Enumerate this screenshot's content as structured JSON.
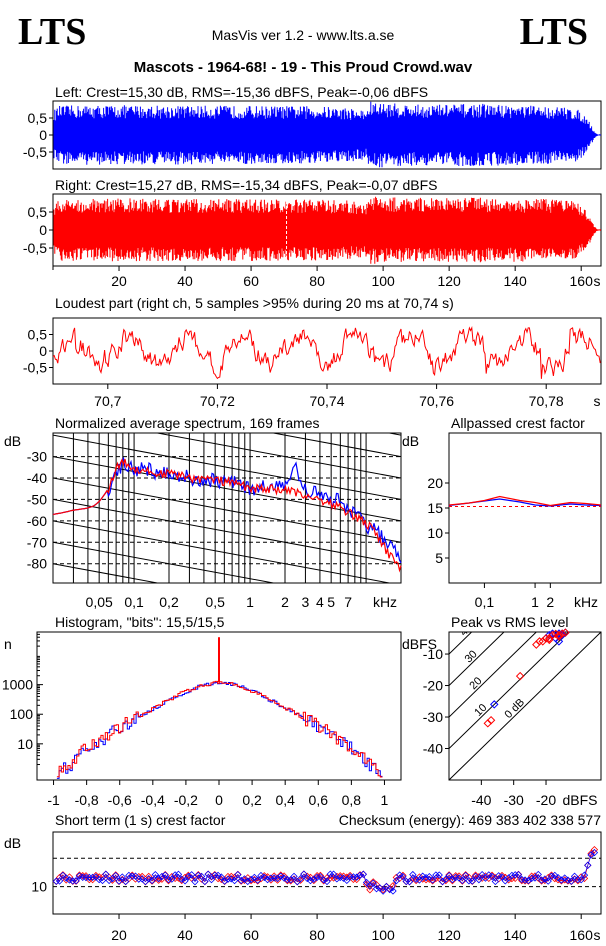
{
  "header": {
    "logo_left": "LTS",
    "logo_right": "LTS",
    "app_title": "MasVis ver 1.2 - www.lts.a.se",
    "file_title": "Mascots - 1964-68! - 19 - This Proud Crowd.wav"
  },
  "colors": {
    "left": "#0000ff",
    "right": "#ff0000"
  },
  "chart_data": [
    {
      "id": "left",
      "type": "area",
      "title": "Left: Crest=15,30 dB, RMS=-15,36 dBFS, Peak=-0,06 dBFS",
      "ylim": [
        -1,
        1
      ],
      "yticks": [
        "0,5",
        "0",
        "-0,5"
      ],
      "ytick_values": [
        0.5,
        0,
        -0.5
      ],
      "xlim": [
        0,
        166
      ],
      "envelope_x": [
        0,
        2,
        10,
        20,
        40,
        60,
        80,
        90,
        95,
        96,
        97,
        100,
        110,
        130,
        150,
        158,
        161,
        163,
        164,
        165
      ],
      "envelope_y": [
        0.72,
        0.86,
        0.88,
        0.88,
        0.87,
        0.86,
        0.85,
        0.8,
        0.72,
        1.0,
        0.97,
        0.95,
        0.9,
        0.92,
        0.85,
        0.8,
        0.62,
        0.3,
        0.1,
        0.02
      ]
    },
    {
      "id": "right",
      "type": "area",
      "title": "Right: Crest=15,27 dB, RMS=-15,34 dBFS, Peak=-0,07 dBFS",
      "ylim": [
        -1,
        1
      ],
      "yticks": [
        "0,5",
        "0",
        "-0,5"
      ],
      "ytick_values": [
        0.5,
        0,
        -0.5
      ],
      "xlim": [
        0,
        166
      ],
      "xticks": [
        20,
        40,
        60,
        80,
        100,
        120,
        140,
        160
      ],
      "xtick_labels": [
        "20",
        "40",
        "60",
        "80",
        "100",
        "120",
        "140",
        "160",
        "s"
      ],
      "marker_x": 70.74,
      "envelope_x": [
        0,
        2,
        10,
        20,
        40,
        60,
        80,
        90,
        95,
        96,
        97,
        100,
        110,
        130,
        150,
        158,
        161,
        163,
        164,
        165
      ],
      "envelope_y": [
        0.7,
        0.85,
        0.88,
        0.88,
        0.86,
        0.86,
        0.85,
        0.82,
        0.78,
        0.98,
        0.95,
        0.92,
        0.9,
        0.9,
        0.86,
        0.8,
        0.6,
        0.3,
        0.1,
        0.02
      ]
    },
    {
      "id": "loudest",
      "type": "line",
      "title": "Loudest part (right ch, 5 samples >95% during 20 ms at 70,74 s)",
      "ylim": [
        -1,
        1
      ],
      "yticks": [
        "0,5",
        "0",
        "-0,5"
      ],
      "ytick_values": [
        0.5,
        0,
        -0.5
      ],
      "xlim": [
        70.69,
        70.79
      ],
      "xticks": [
        70.7,
        70.72,
        70.74,
        70.76,
        70.78
      ],
      "xtick_labels": [
        "70,7",
        "70,72",
        "70,74",
        "70,76",
        "70,78",
        "s"
      ]
    },
    {
      "id": "spectrum",
      "type": "line",
      "title": "Normalized average spectrum, 169 frames",
      "ylabel": "dB",
      "yticks": [
        "-30",
        "-40",
        "-50",
        "-60",
        "-70",
        "-80"
      ],
      "ytick_values": [
        -30,
        -40,
        -50,
        -60,
        -70,
        -80
      ],
      "ylim": [
        -89,
        -19
      ],
      "xlim": [
        0.02,
        20
      ],
      "xtick_values": [
        0.05,
        0.1,
        0.2,
        0.5,
        1,
        2,
        3,
        4,
        5,
        7
      ],
      "xtick_labels": [
        "0,05",
        "0,1",
        "0,2",
        "0,5",
        "1",
        "2",
        "3",
        "4",
        "5",
        "7",
        "kHz"
      ],
      "series": [
        {
          "color": "blue",
          "x": [
            0.02,
            0.025,
            0.03,
            0.04,
            0.045,
            0.05,
            0.06,
            0.07,
            0.08,
            0.1,
            0.12,
            0.15,
            0.2,
            0.3,
            0.5,
            0.8,
            1,
            1.5,
            2,
            2.5,
            3,
            4,
            5,
            6,
            7,
            8,
            10,
            12,
            15,
            18,
            20
          ],
          "y": [
            -57,
            -56,
            -55,
            -54,
            -53,
            -51,
            -45,
            -37,
            -33,
            -37,
            -35,
            -37,
            -37,
            -40,
            -41,
            -42,
            -45,
            -44,
            -43,
            -36,
            -46,
            -47,
            -52,
            -49,
            -55,
            -56,
            -62,
            -65,
            -70,
            -74,
            -80
          ]
        },
        {
          "color": "red",
          "x": [
            0.02,
            0.025,
            0.03,
            0.04,
            0.045,
            0.05,
            0.06,
            0.07,
            0.08,
            0.1,
            0.12,
            0.15,
            0.2,
            0.3,
            0.5,
            0.8,
            1,
            1.5,
            2,
            2.5,
            3,
            4,
            5,
            6,
            7,
            8,
            10,
            12,
            15,
            18,
            20
          ],
          "y": [
            -57,
            -56,
            -55,
            -54,
            -53,
            -51,
            -45,
            -36,
            -32,
            -36,
            -36,
            -38,
            -38,
            -40,
            -41,
            -43,
            -45,
            -45,
            -46,
            -47,
            -48,
            -50,
            -52,
            -54,
            -56,
            -58,
            -61,
            -66,
            -74,
            -80,
            -82
          ]
        }
      ]
    },
    {
      "id": "allpass",
      "type": "line",
      "title": "Allpassed crest factor",
      "ylabel": "dB",
      "yticks": [
        "20",
        "15",
        "10",
        "5"
      ],
      "ytick_values": [
        20,
        15,
        10,
        5
      ],
      "ylim": [
        0,
        30
      ],
      "xlim": [
        0.02,
        20
      ],
      "xtick_values": [
        0.1,
        1,
        2
      ],
      "xtick_labels": [
        "0,1",
        "1",
        "2",
        "kHz"
      ],
      "reference_db": 15.3,
      "series": [
        {
          "color": "blue",
          "x": [
            0.02,
            0.05,
            0.1,
            0.2,
            0.5,
            1,
            2,
            5,
            10,
            20
          ],
          "y": [
            15.5,
            16.0,
            16.4,
            16.8,
            16.2,
            15.6,
            15.4,
            15.8,
            15.6,
            15.5
          ]
        },
        {
          "color": "red",
          "x": [
            0.02,
            0.05,
            0.1,
            0.2,
            0.5,
            1,
            2,
            5,
            10,
            20
          ],
          "y": [
            15.6,
            16.0,
            16.5,
            17.3,
            16.5,
            16.1,
            15.5,
            16.1,
            15.9,
            15.6
          ]
        }
      ]
    },
    {
      "id": "histogram",
      "type": "line",
      "title": "Histogram, \"bits\": 15,5/15,5",
      "ylabel": "n",
      "yticks": [
        "1000",
        "100",
        "10"
      ],
      "ytick_values": [
        1000,
        100,
        10
      ],
      "ylim": [
        0.6,
        60000
      ],
      "xlim": [
        -1.1,
        1.1
      ],
      "xtick_values": [
        -1,
        -0.8,
        -0.6,
        -0.4,
        -0.2,
        0,
        0.2,
        0.4,
        0.6,
        0.8,
        1
      ],
      "xtick_labels": [
        "-1",
        "-0,8",
        "-0,6",
        "-0,4",
        "-0,2",
        "0",
        "0,2",
        "0,4",
        "0,6",
        "0,8",
        "1"
      ],
      "series": [
        {
          "color": "blue",
          "x": [
            -0.97,
            -0.9,
            -0.8,
            -0.7,
            -0.6,
            -0.5,
            -0.4,
            -0.3,
            -0.2,
            -0.1,
            0,
            0.1,
            0.2,
            0.3,
            0.4,
            0.5,
            0.6,
            0.7,
            0.8,
            0.9,
            0.97
          ],
          "y": [
            1,
            2,
            6,
            15,
            32,
            70,
            150,
            300,
            580,
            950,
            1200,
            950,
            590,
            300,
            150,
            72,
            32,
            15,
            6,
            2,
            1
          ]
        },
        {
          "color": "red",
          "x": [
            -0.97,
            -0.9,
            -0.8,
            -0.7,
            -0.6,
            -0.5,
            -0.4,
            -0.3,
            -0.2,
            -0.1,
            0,
            0.1,
            0.2,
            0.3,
            0.4,
            0.5,
            0.6,
            0.7,
            0.8,
            0.9,
            0.97
          ],
          "y": [
            1,
            2,
            7,
            16,
            34,
            72,
            155,
            310,
            600,
            980,
            1200,
            980,
            600,
            310,
            155,
            74,
            34,
            16,
            7,
            2,
            1
          ]
        }
      ],
      "spike": {
        "x": 0,
        "y": 40000
      }
    },
    {
      "id": "peakrms",
      "type": "scatter",
      "title": "Peak vs RMS level",
      "ylabel": "dBFS",
      "yticks": [
        "-10",
        "-20",
        "-30",
        "-40"
      ],
      "ytick_values": [
        -10,
        -20,
        -30,
        -40
      ],
      "ylim": [
        -50,
        -3
      ],
      "xlim": [
        -50,
        -3
      ],
      "xtick_values": [
        -40,
        -30,
        -20
      ],
      "xtick_labels": [
        "-40",
        "-30",
        "-20",
        "dBFS"
      ],
      "crest_lines": [
        0,
        10,
        20,
        30,
        40
      ],
      "crest_labels": [
        "0 dB",
        "10",
        "20",
        "30",
        "40"
      ],
      "series": [
        {
          "color": "blue",
          "x": [
            -20,
            -19,
            -18,
            -17,
            -16,
            -16,
            -15,
            -15,
            -14,
            -36
          ],
          "y": [
            -5,
            -4,
            -3.5,
            -5,
            -6,
            -3.5,
            -4,
            -3.5,
            -3.2,
            -26
          ]
        },
        {
          "color": "red",
          "x": [
            -23,
            -22,
            -21,
            -20,
            -19,
            -18,
            -17,
            -16,
            -15,
            -14,
            -16,
            -19,
            -37,
            -28,
            -38
          ],
          "y": [
            -7,
            -6,
            -6,
            -5,
            -5,
            -4,
            -3.6,
            -4,
            -3.5,
            -3.2,
            -4.5,
            -5.5,
            -31,
            -17,
            -32
          ]
        }
      ]
    },
    {
      "id": "shortcrest",
      "type": "scatter",
      "title": "Short term (1 s) crest factor",
      "checksum": "Checksum (energy):  469 383 402 338 577",
      "ylabel": "dB",
      "yticks": [
        "10"
      ],
      "ytick_values": [
        10
      ],
      "ylim": [
        5,
        20
      ],
      "xlim": [
        0,
        166
      ],
      "xticks": [
        20,
        40,
        60,
        80,
        100,
        120,
        140,
        160
      ],
      "xtick_labels": [
        "20",
        "40",
        "60",
        "80",
        "100",
        "120",
        "140",
        "160",
        "s"
      ],
      "reference_lines": [
        15.2,
        10
      ]
    }
  ]
}
